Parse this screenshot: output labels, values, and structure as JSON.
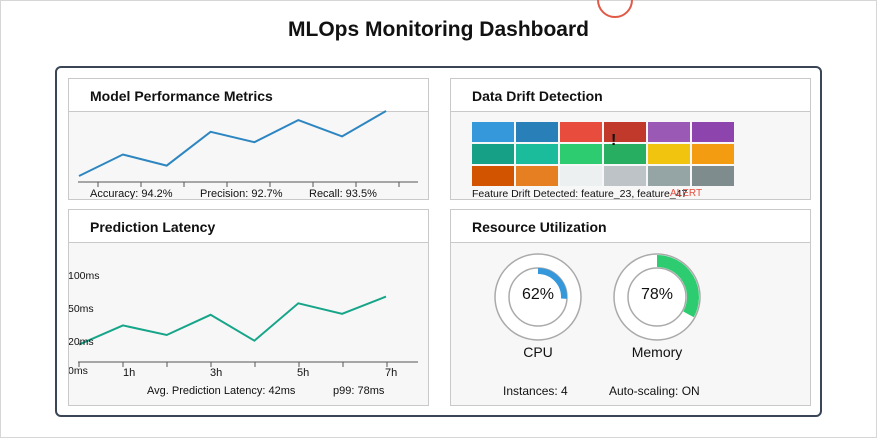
{
  "dashboard": {
    "title": "MLOps Monitoring Dashboard"
  },
  "performance": {
    "title": "Model Performance Metrics",
    "accuracy": "Accuracy: 94.2%",
    "precision": "Precision: 92.7%",
    "recall": "Recall: 93.5%",
    "line_color": "#2e86c1"
  },
  "drift": {
    "title": "Data Drift Detection",
    "status": "Feature Drift Detected: feature_23, feature_47",
    "alert": "ALERT",
    "flag": "!",
    "cells": [
      [
        "#3498db",
        "#2980b9",
        "#e74c3c",
        "#c0392b",
        "#9b59b6",
        "#8e44ad"
      ],
      [
        "#16a085",
        "#1abc9c",
        "#2ecc71",
        "#27ae60",
        "#f1c40f",
        "#f39c12"
      ],
      [
        "#d35400",
        "#e67e22",
        "#ecf0f1",
        "#bdc3c7",
        "#95a5a6",
        "#7f8c8d"
      ]
    ]
  },
  "latency": {
    "title": "Prediction Latency",
    "y_ticks": [
      "100ms",
      "50ms",
      "20ms",
      "0ms"
    ],
    "x_ticks": [
      "1h",
      "3h",
      "5h",
      "7h"
    ],
    "avg": "Avg. Prediction Latency: 42ms",
    "p99": "p99: 78ms",
    "line_color": "#17a589"
  },
  "resources": {
    "title": "Resource Utilization",
    "cpu": {
      "label": "CPU",
      "value": 62,
      "display": "62%",
      "color": "#3498db"
    },
    "memory": {
      "label": "Memory",
      "value": 78,
      "display": "78%",
      "color": "#2ecc71"
    },
    "instances": "Instances: 4",
    "autoscaling": "Auto-scaling: ON"
  },
  "chart_data": [
    {
      "type": "line",
      "title": "Model Performance Metrics",
      "x": [
        1,
        2,
        3,
        4,
        5,
        6,
        7,
        8
      ],
      "series": [
        {
          "values": [
            0.0,
            0.33,
            0.16,
            0.68,
            0.52,
            0.86,
            0.61,
            1.0
          ]
        }
      ],
      "xlabel": "",
      "ylabel": ""
    },
    {
      "type": "line",
      "title": "Prediction Latency",
      "x": [
        0,
        1,
        2,
        3,
        4,
        5,
        6,
        7
      ],
      "x_tick_labels": [
        "1h",
        "3h",
        "5h",
        "7h"
      ],
      "y_tick_labels": [
        "100ms",
        "50ms",
        "20ms",
        "0ms"
      ],
      "series": [
        {
          "values": [
            0.14,
            0.34,
            0.24,
            0.45,
            0.18,
            0.57,
            0.46,
            0.64
          ]
        }
      ],
      "xlabel": "",
      "ylabel": ""
    }
  ]
}
